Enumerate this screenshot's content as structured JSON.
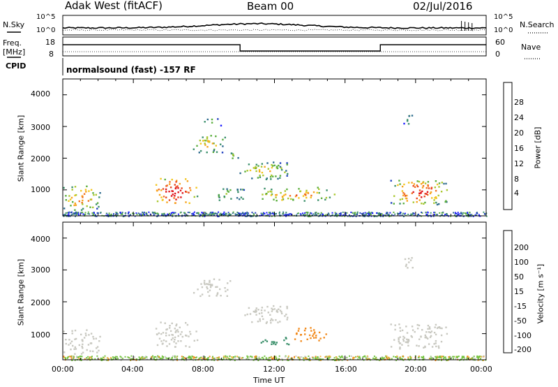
{
  "header": {
    "station": "Adak West (fitACF)",
    "beam": "Beam 00",
    "date": "02/Jul/2016"
  },
  "noise_panel": {
    "left_label": "N.Sky",
    "right_label": "N.Search",
    "left_ticks": [
      "10^5",
      "10^0"
    ],
    "right_ticks": [
      "10^5",
      "10^0"
    ]
  },
  "freq_panel": {
    "left_label_1": "Freq.",
    "left_label_2": "[MHz]",
    "right_label": "Nave",
    "left_ticks": [
      "18",
      "8"
    ],
    "right_ticks": [
      "60",
      "0"
    ]
  },
  "cpid_panel": {
    "label": "CPID",
    "text": "normalsound (fast) -157 RF"
  },
  "colorbars": {
    "power": {
      "label": "Power [dB]",
      "ticks": [
        "28",
        "24",
        "20",
        "16",
        "12",
        "8",
        "4"
      ],
      "colors": [
        "#1a1aff",
        "#1f3fbf",
        "#2e6b8e",
        "#3a8f6a",
        "#5aae3c",
        "#a9c72e",
        "#f2c51c",
        "#f7a21a",
        "#f2711d",
        "#e8461c",
        "#e0141a"
      ]
    },
    "velocity": {
      "label": "Velocity [m s⁻¹]",
      "ticks": [
        "200",
        "100",
        "50",
        "15",
        "-15",
        "-50",
        "-100",
        "-200"
      ],
      "colors": [
        "#1f2fbf",
        "#2e5aa6",
        "#3a8f6a",
        "#72c23c",
        "#c8c8c0",
        "#f4b23a",
        "#f28a1c",
        "#ec5a1c",
        "#e0141a"
      ]
    }
  },
  "chart_data": [
    {
      "type": "heatmap",
      "name": "Power",
      "xlabel": "",
      "ylabel": "Slant Range [km]",
      "yticks": [
        "4000",
        "3000",
        "2000",
        "1000"
      ],
      "ylim": [
        180,
        4500
      ],
      "xlim_hours": [
        0,
        24
      ],
      "regions": [
        {
          "t0": 0.0,
          "t1": 2.1,
          "r0": 380,
          "r1": 1150,
          "level": 9
        },
        {
          "t0": 5.0,
          "t1": 7.6,
          "r0": 550,
          "r1": 1400,
          "level": 13
        },
        {
          "t0": 7.3,
          "t1": 9.2,
          "r0": 2200,
          "r1": 2750,
          "level": 7
        },
        {
          "t0": 9.3,
          "t1": 10.0,
          "r0": 1950,
          "r1": 2250,
          "level": 6
        },
        {
          "t0": 10.0,
          "t1": 12.8,
          "r0": 1350,
          "r1": 1900,
          "level": 7
        },
        {
          "t0": 11.0,
          "t1": 15.4,
          "r0": 650,
          "r1": 1100,
          "level": 9
        },
        {
          "t0": 8.5,
          "t1": 10.5,
          "r0": 700,
          "r1": 1100,
          "level": 6
        },
        {
          "t0": 18.5,
          "t1": 21.8,
          "r0": 550,
          "r1": 1350,
          "level": 11
        },
        {
          "t0": 19.3,
          "t1": 19.8,
          "r0": 3050,
          "r1": 3450,
          "level": 5
        },
        {
          "t0": 8.0,
          "t1": 9.0,
          "r0": 3050,
          "r1": 3300,
          "level": 4
        }
      ]
    },
    {
      "type": "heatmap",
      "name": "Velocity",
      "xlabel": "Time UT",
      "ylabel": "Slant Range [km]",
      "yticks": [
        "4000",
        "3000",
        "2000",
        "1000"
      ],
      "xticks": [
        "00:00",
        "04:00",
        "08:00",
        "12:00",
        "16:00",
        "20:00",
        "00:00"
      ],
      "ylim": [
        180,
        4500
      ],
      "xlim_hours": [
        0,
        24
      ],
      "regions": [
        {
          "t0": 0.0,
          "t1": 2.1,
          "r0": 380,
          "r1": 1150,
          "vel": 0
        },
        {
          "t0": 5.0,
          "t1": 7.6,
          "r0": 550,
          "r1": 1400,
          "vel": 0
        },
        {
          "t0": 7.3,
          "t1": 9.5,
          "r0": 2200,
          "r1": 2750,
          "vel": 0
        },
        {
          "t0": 10.0,
          "t1": 12.8,
          "r0": 1350,
          "r1": 1900,
          "vel": 0
        },
        {
          "t0": 11.2,
          "t1": 13.0,
          "r0": 650,
          "r1": 900,
          "vel": 40
        },
        {
          "t0": 13.0,
          "t1": 14.9,
          "r0": 750,
          "r1": 1250,
          "vel": -60
        },
        {
          "t0": 18.5,
          "t1": 21.8,
          "r0": 550,
          "r1": 1350,
          "vel": 0
        },
        {
          "t0": 19.3,
          "t1": 19.8,
          "r0": 3050,
          "r1": 3450,
          "vel": 0
        }
      ]
    }
  ]
}
